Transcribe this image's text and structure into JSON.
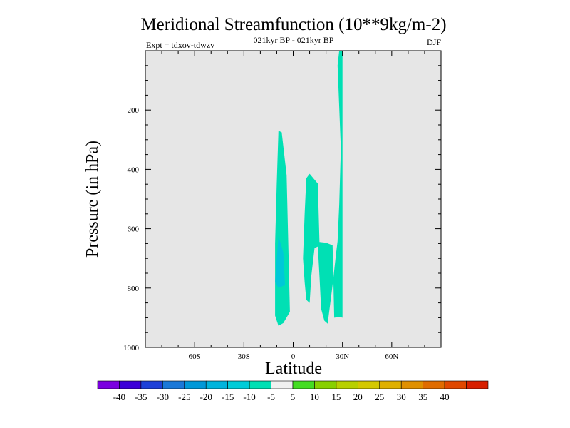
{
  "chart_data": {
    "type": "contour",
    "title": "Meridional Streamfunction (10**9kg/m-2)",
    "subtitle": "021kyr BP - 021kyr BP",
    "left_label": "Expt = tdxov-tdwzv",
    "right_label": "DJF",
    "xlabel": "Latitude",
    "ylabel": "Pressure (in hPa)",
    "xlim": [
      -90,
      90
    ],
    "ylim": [
      1000,
      0
    ],
    "x_ticks": [
      {
        "value": -60,
        "label": "60S"
      },
      {
        "value": -30,
        "label": "30S"
      },
      {
        "value": 0,
        "label": "0"
      },
      {
        "value": 30,
        "label": "30N"
      },
      {
        "value": 60,
        "label": "60N"
      }
    ],
    "y_ticks": [
      {
        "value": 200,
        "label": "200"
      },
      {
        "value": 400,
        "label": "400"
      },
      {
        "value": 600,
        "label": "600"
      },
      {
        "value": 800,
        "label": "800"
      },
      {
        "value": 1000,
        "label": "1000"
      }
    ],
    "background_color": "#e6e6e6",
    "regions": [
      {
        "level": "-10 to -5",
        "color": "#00e0b4",
        "points": [
          [
            -9,
            270
          ],
          [
            -7,
            275
          ],
          [
            -4,
            420
          ],
          [
            -2,
            880
          ],
          [
            -6,
            918
          ],
          [
            -9,
            927
          ],
          [
            -11,
            893
          ],
          [
            -11,
            650
          ],
          [
            -10,
            450
          ]
        ]
      },
      {
        "level": "-15 to -10",
        "color": "#00c8d8",
        "points": [
          [
            -9,
            625
          ],
          [
            -6,
            680
          ],
          [
            -5,
            790
          ],
          [
            -9,
            800
          ],
          [
            -11,
            780
          ],
          [
            -10,
            700
          ]
        ]
      },
      {
        "level": "-10 to -5",
        "color": "#00e0b4",
        "points": [
          [
            8,
            430
          ],
          [
            10,
            415
          ],
          [
            15,
            448
          ],
          [
            16,
            645
          ],
          [
            20,
            647
          ],
          [
            24,
            656
          ],
          [
            25,
            900
          ],
          [
            28,
            897
          ],
          [
            30,
            900
          ],
          [
            30,
            0
          ],
          [
            28,
            0
          ],
          [
            27,
            50
          ],
          [
            29,
            330
          ],
          [
            28,
            520
          ],
          [
            27,
            642
          ],
          [
            26,
            690
          ],
          [
            24,
            790
          ],
          [
            21,
            920
          ],
          [
            19,
            910
          ],
          [
            17,
            870
          ],
          [
            16,
            760
          ],
          [
            15,
            660
          ],
          [
            13,
            665
          ],
          [
            11,
            760
          ],
          [
            10,
            850
          ],
          [
            8,
            840
          ],
          [
            7,
            780
          ],
          [
            6,
            700
          ],
          [
            7,
            550
          ]
        ]
      }
    ],
    "colorbar": {
      "colors": [
        "#7b00e0",
        "#3c00d8",
        "#1e40d8",
        "#1a78d8",
        "#0098d8",
        "#00b4dc",
        "#00ccd8",
        "#00e0b4",
        "#f0f0f0",
        "#44dd22",
        "#88d000",
        "#b8d000",
        "#d4c800",
        "#e0b000",
        "#e09000",
        "#e06c00",
        "#e04800",
        "#d82000"
      ],
      "labels": [
        "-40",
        "-35",
        "-30",
        "-25",
        "-20",
        "-15",
        "-10",
        "-5",
        "5",
        "10",
        "15",
        "20",
        "25",
        "30",
        "35",
        "40"
      ]
    }
  }
}
